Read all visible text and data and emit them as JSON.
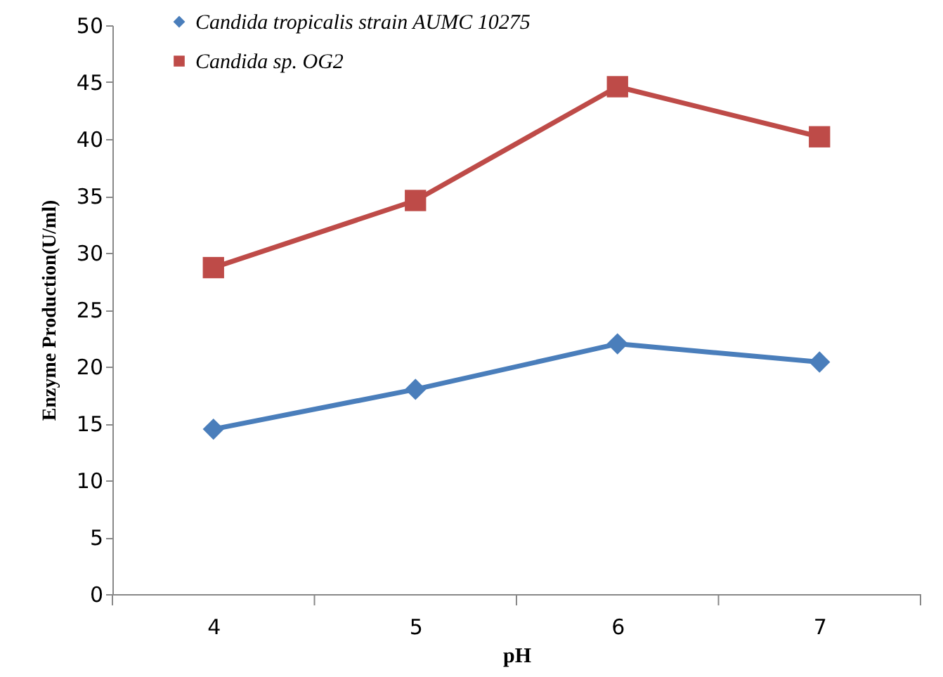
{
  "chart_data": {
    "type": "line",
    "xlabel": "pH",
    "ylabel": "Enzyme Production(U/ml)",
    "categories": [
      "4",
      "5",
      "6",
      "7"
    ],
    "ylim": [
      0,
      50
    ],
    "yticks": [
      0,
      5,
      10,
      15,
      20,
      25,
      30,
      35,
      40,
      45,
      50
    ],
    "grid": false,
    "legend": "top left",
    "series": [
      {
        "name": "Candida tropicalis strain AUMC 10275",
        "color": "#4a7ebb",
        "marker": "diamond",
        "values": [
          14.5,
          18.0,
          22.0,
          20.4
        ]
      },
      {
        "name": "Candida sp. OG2",
        "color": "#be4b48",
        "marker": "square",
        "values": [
          28.7,
          34.6,
          44.6,
          40.2
        ]
      }
    ]
  }
}
